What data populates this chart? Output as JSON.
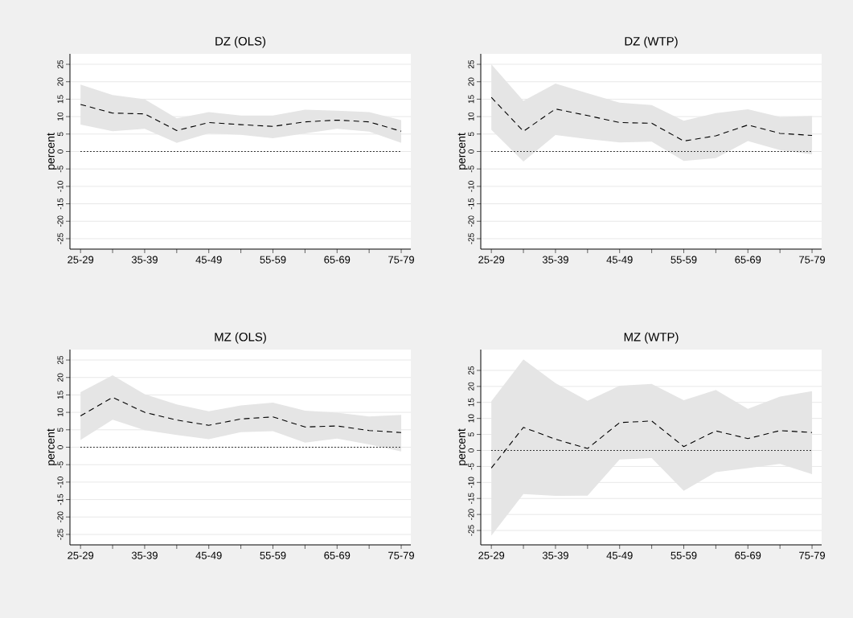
{
  "chart_data": [
    {
      "type": "line",
      "title": "DZ (OLS)",
      "ylabel": "percent",
      "categories": [
        "25-29",
        null,
        "35-39",
        null,
        "45-49",
        null,
        "55-59",
        null,
        "65-69",
        null,
        "75-79"
      ],
      "ylim": [
        -28,
        28
      ],
      "yticks": [
        -25,
        -20,
        -15,
        -10,
        -5,
        0,
        5,
        10,
        15,
        20,
        25
      ],
      "grid": "y",
      "line_style": "dashed",
      "series": [
        {
          "color": "#000000",
          "values": [
            13.5,
            11,
            10.8,
            6,
            8.3,
            7.7,
            7.2,
            8.5,
            9,
            8.5,
            5.8
          ],
          "lower": [
            7.7,
            5.8,
            6.5,
            2.5,
            5.2,
            4.8,
            3.8,
            5.2,
            6.5,
            5.7,
            2.5
          ],
          "upper": [
            19.2,
            16.2,
            15,
            9.5,
            11.3,
            10.3,
            10.3,
            12,
            11.7,
            11.3,
            9
          ]
        }
      ],
      "ref_lines": [
        {
          "axis": "y",
          "value": 0,
          "color": "#000000",
          "line_style": "dotted"
        }
      ]
    },
    {
      "type": "line",
      "title": "DZ (WTP)",
      "ylabel": "percent",
      "categories": [
        "25-29",
        null,
        "35-39",
        null,
        "45-49",
        null,
        "55-59",
        null,
        "65-69",
        null,
        "75-79"
      ],
      "ylim": [
        -28,
        28
      ],
      "yticks": [
        -25,
        -20,
        -15,
        -10,
        -5,
        0,
        5,
        10,
        15,
        20,
        25
      ],
      "grid": "y",
      "line_style": "dashed",
      "series": [
        {
          "color": "#000000",
          "values": [
            15.5,
            5.8,
            12.2,
            10.3,
            8.3,
            8.1,
            3,
            4.5,
            7.6,
            5.2,
            4.6
          ],
          "lower": [
            6.2,
            -2.9,
            4.7,
            3.6,
            2.6,
            2.8,
            -2.7,
            -1.9,
            3,
            0.4,
            -0.8
          ],
          "upper": [
            25,
            14.5,
            19.5,
            16.7,
            14,
            13.3,
            8.8,
            11,
            12.1,
            9.9,
            10.2
          ]
        }
      ],
      "ref_lines": [
        {
          "axis": "y",
          "value": 0,
          "color": "#000000",
          "line_style": "dotted"
        }
      ]
    },
    {
      "type": "line",
      "title": "MZ (OLS)",
      "ylabel": "percent",
      "categories": [
        "25-29",
        null,
        "35-39",
        null,
        "45-49",
        null,
        "55-59",
        null,
        "65-69",
        null,
        "75-79"
      ],
      "ylim": [
        -28,
        28
      ],
      "yticks": [
        -25,
        -20,
        -15,
        -10,
        -5,
        0,
        5,
        10,
        15,
        20,
        25
      ],
      "grid": "y",
      "line_style": "dashed",
      "series": [
        {
          "color": "#000000",
          "values": [
            9,
            14.3,
            10,
            7.8,
            6.3,
            8.1,
            8.7,
            5.8,
            6.1,
            4.8,
            4.2
          ],
          "lower": [
            2.1,
            7.9,
            4.9,
            3.5,
            2.3,
            4.3,
            4.6,
            1.3,
            2.5,
            0.8,
            -1.2
          ],
          "upper": [
            15.8,
            20.6,
            15.2,
            12.3,
            10.3,
            12,
            12.8,
            10.5,
            9.9,
            8.8,
            9.3
          ]
        }
      ],
      "ref_lines": [
        {
          "axis": "y",
          "value": 0,
          "color": "#000000",
          "line_style": "dotted"
        }
      ]
    },
    {
      "type": "line",
      "title": "MZ (WTP)",
      "ylabel": "percent",
      "categories": [
        "25-29",
        null,
        "35-39",
        null,
        "45-49",
        null,
        "55-59",
        null,
        "65-69",
        null,
        "75-79"
      ],
      "ylim": [
        -29.5,
        31.5
      ],
      "yticks": [
        -25,
        -20,
        -15,
        -10,
        -5,
        0,
        5,
        10,
        15,
        20,
        25
      ],
      "grid": "y",
      "line_style": "dashed",
      "series": [
        {
          "color": "#000000",
          "values": [
            -5.5,
            7.2,
            3.5,
            0.6,
            8.7,
            9.2,
            1.2,
            6.1,
            3.7,
            6.2,
            5.6
          ],
          "lower": [
            -26.6,
            -13.6,
            -14.2,
            -14.1,
            -2.8,
            -2.4,
            -12.6,
            -6.8,
            -5.5,
            -4.2,
            -7.4
          ],
          "upper": [
            15.4,
            28.4,
            21,
            15.5,
            20.2,
            20.8,
            15.7,
            18.9,
            13,
            16.8,
            18.5
          ]
        }
      ],
      "ref_lines": [
        {
          "axis": "y",
          "value": 0,
          "color": "#000000",
          "line_style": "dotted"
        }
      ]
    }
  ]
}
